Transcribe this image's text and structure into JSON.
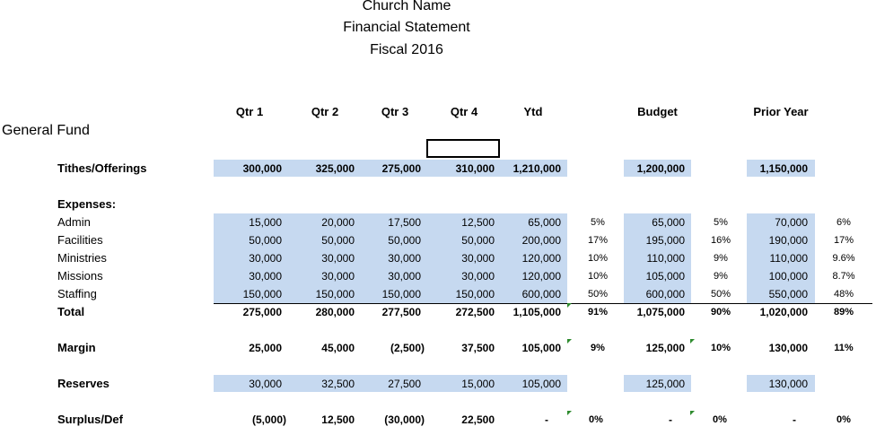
{
  "header": {
    "church_name": "Church Name",
    "statement": "Financial Statement",
    "fiscal": "Fiscal 2016"
  },
  "columns": [
    "Qtr 1",
    "Qtr 2",
    "Qtr 3",
    "Qtr 4",
    "Ytd",
    "Budget",
    "Prior Year"
  ],
  "fund_label": "General Fund",
  "tithes": {
    "label": "Tithes/Offerings",
    "values": [
      "300,000",
      "325,000",
      "275,000",
      "310,000",
      "1,210,000"
    ],
    "budget": "1,200,000",
    "prior": "1,150,000"
  },
  "expenses_label": "Expenses:",
  "expenses": [
    {
      "label": "Admin",
      "values": [
        "15,000",
        "20,000",
        "17,500",
        "12,500",
        "65,000"
      ],
      "ytd_pct": "5%",
      "budget": "65,000",
      "budget_pct": "5%",
      "prior": "70,000",
      "prior_pct": "6%"
    },
    {
      "label": "Facilities",
      "values": [
        "50,000",
        "50,000",
        "50,000",
        "50,000",
        "200,000"
      ],
      "ytd_pct": "17%",
      "budget": "195,000",
      "budget_pct": "16%",
      "prior": "190,000",
      "prior_pct": "17%"
    },
    {
      "label": "Ministries",
      "values": [
        "30,000",
        "30,000",
        "30,000",
        "30,000",
        "120,000"
      ],
      "ytd_pct": "10%",
      "budget": "110,000",
      "budget_pct": "9%",
      "prior": "110,000",
      "prior_pct": "9.6%"
    },
    {
      "label": "Missions",
      "values": [
        "30,000",
        "30,000",
        "30,000",
        "30,000",
        "120,000"
      ],
      "ytd_pct": "10%",
      "budget": "105,000",
      "budget_pct": "9%",
      "prior": "100,000",
      "prior_pct": "8.7%"
    },
    {
      "label": "Staffing",
      "values": [
        "150,000",
        "150,000",
        "150,000",
        "150,000",
        "600,000"
      ],
      "ytd_pct": "50%",
      "budget": "600,000",
      "budget_pct": "50%",
      "prior": "550,000",
      "prior_pct": "48%"
    }
  ],
  "total": {
    "label": "Total",
    "values": [
      "275,000",
      "280,000",
      "277,500",
      "272,500",
      "1,105,000"
    ],
    "ytd_pct": "91%",
    "budget": "1,075,000",
    "budget_pct": "90%",
    "prior": "1,020,000",
    "prior_pct": "89%"
  },
  "margin": {
    "label": "Margin",
    "values": [
      "25,000",
      "45,000",
      "(2,500)",
      "37,500",
      "105,000"
    ],
    "ytd_pct": "9%",
    "budget": "125,000",
    "budget_pct": "10%",
    "prior": "130,000",
    "prior_pct": "11%"
  },
  "reserves": {
    "label": "Reserves",
    "values": [
      "30,000",
      "32,500",
      "27,500",
      "15,000",
      "105,000"
    ],
    "budget": "125,000",
    "prior": "130,000"
  },
  "surplus": {
    "label": "Surplus/Def",
    "values": [
      "(5,000)",
      "12,500",
      "(30,000)",
      "22,500",
      "-"
    ],
    "ytd_pct": "0%",
    "budget": "-",
    "budget_pct": "0%",
    "prior": "-",
    "prior_pct": "0%"
  },
  "colors": {
    "cell_fill": "#c6d9f0",
    "error_flag": "#2e8b2e"
  }
}
